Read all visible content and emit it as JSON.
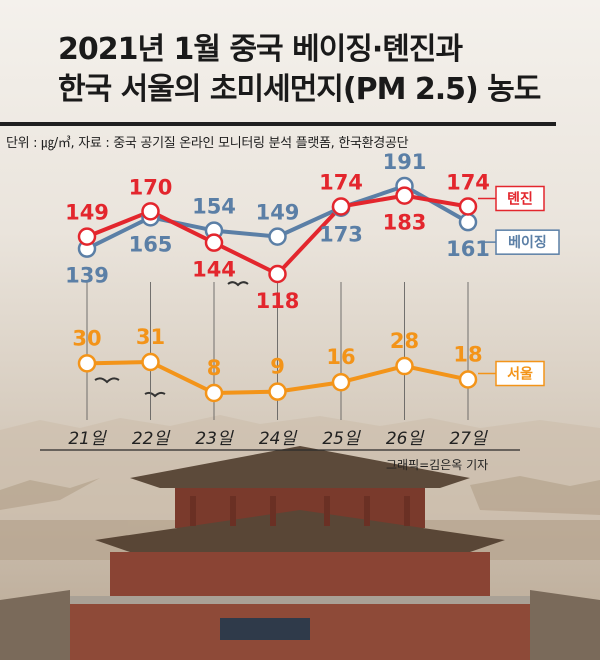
{
  "title": {
    "line1": "2021년 1월 중국 베이징·톈진과",
    "line2": "한국 서울의 초미세먼지(PM 2.5) 농도"
  },
  "source": "단위 : ㎍/㎥, 자료 : 중국 공기질 온라인 모니터링 분석 플랫폼, 한국환경공단",
  "credit": "그래픽=김은옥 기자",
  "colors": {
    "tianjin": "#e3262d",
    "beijing": "#5b7fa6",
    "seoul": "#f39419",
    "title": "#1a1a1a"
  },
  "chart_data": {
    "type": "line",
    "categories": [
      "21일",
      "22일",
      "23일",
      "24일",
      "25일",
      "26일",
      "27일"
    ],
    "series": [
      {
        "name": "톈진",
        "values": [
          149,
          170,
          144,
          118,
          174,
          183,
          174
        ]
      },
      {
        "name": "베이징",
        "values": [
          139,
          165,
          154,
          149,
          173,
          191,
          161
        ]
      },
      {
        "name": "서울",
        "values": [
          30,
          31,
          8,
          9,
          16,
          28,
          18
        ]
      }
    ],
    "unit": "㎍/㎥",
    "legend": "right, end of each line"
  }
}
